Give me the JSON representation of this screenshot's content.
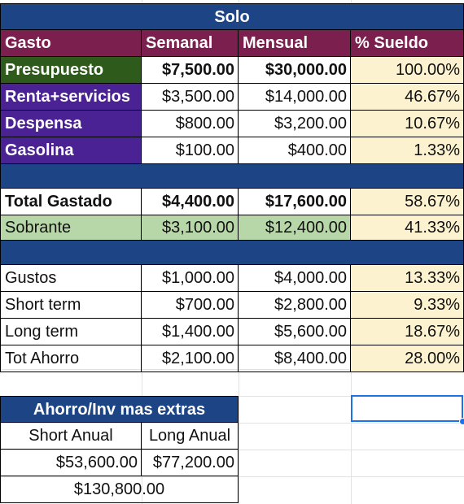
{
  "colors": {
    "navy": "#1d4586",
    "maroon": "#7b1f4e",
    "green": "#2e5a1c",
    "purple": "#4b2294",
    "cream": "#fdf2d0",
    "light_green": "#b7d7a8",
    "selection": "#1a73e8"
  },
  "title": "Solo",
  "headers": {
    "gasto": "Gasto",
    "semanal": "Semanal",
    "mensual": "Mensual",
    "pct": "% Sueldo"
  },
  "presupuesto": {
    "label": "Presupuesto",
    "semanal": "$7,500.00",
    "mensual": "$30,000.00",
    "pct": "100.00%"
  },
  "gastos": [
    {
      "label": "Renta+servicios",
      "semanal": "$3,500.00",
      "mensual": "$14,000.00",
      "pct": "46.67%"
    },
    {
      "label": "Despensa",
      "semanal": "$800.00",
      "mensual": "$3,200.00",
      "pct": "10.67%"
    },
    {
      "label": "Gasolina",
      "semanal": "$100.00",
      "mensual": "$400.00",
      "pct": "1.33%"
    }
  ],
  "total": {
    "label": "Total Gastado",
    "semanal": "$4,400.00",
    "mensual": "$17,600.00",
    "pct": "58.67%"
  },
  "sobrante": {
    "label": "Sobrante",
    "semanal": "$3,100.00",
    "mensual": "$12,400.00",
    "pct": "41.33%"
  },
  "ahorro": [
    {
      "label": "Gustos",
      "semanal": "$1,000.00",
      "mensual": "$4,000.00",
      "pct": "13.33%"
    },
    {
      "label": "Short term",
      "semanal": "$700.00",
      "mensual": "$2,800.00",
      "pct": "9.33%"
    },
    {
      "label": "Long term",
      "semanal": "$1,400.00",
      "mensual": "$5,600.00",
      "pct": "18.67%"
    },
    {
      "label": "Tot Ahorro",
      "semanal": "$2,100.00",
      "mensual": "$8,400.00",
      "pct": "28.00%"
    }
  ],
  "inversion": {
    "title": "Ahorro/Inv mas extras",
    "short_label": "Short Anual",
    "long_label": "Long Anual",
    "short_value": "$53,600.00",
    "long_value": "$77,200.00",
    "total": "$130,800.00"
  }
}
